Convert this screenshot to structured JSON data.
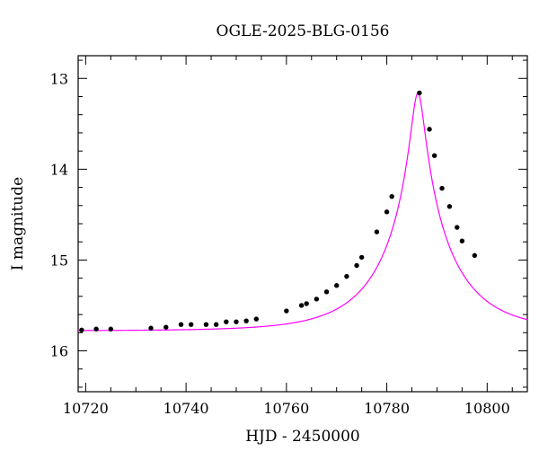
{
  "chart_data": {
    "type": "scatter",
    "title": "OGLE-2025-BLG-0156",
    "xlabel": "HJD - 2450000",
    "ylabel": "I magnitude",
    "xlim": [
      10718.5,
      10808
    ],
    "ylim": [
      16.45,
      12.75
    ],
    "y_inverted": true,
    "grid": false,
    "xticks": [
      10720,
      10740,
      10760,
      10780,
      10800
    ],
    "xtick_labels": [
      "10720",
      "10740",
      "10760",
      "10780",
      "10800"
    ],
    "yticks": [
      13,
      14,
      15,
      16
    ],
    "ytick_labels": [
      "13",
      "14",
      "15",
      "16"
    ],
    "points": [
      [
        10719.2,
        15.77
      ],
      [
        10722.1,
        15.76
      ],
      [
        10725.0,
        15.76
      ],
      [
        10733.0,
        15.75
      ],
      [
        10736.0,
        15.74
      ],
      [
        10739.0,
        15.71
      ],
      [
        10741.0,
        15.71
      ],
      [
        10744.0,
        15.71
      ],
      [
        10746.0,
        15.71
      ],
      [
        10748.0,
        15.68
      ],
      [
        10750.0,
        15.68
      ],
      [
        10752.0,
        15.67
      ],
      [
        10754.0,
        15.65
      ],
      [
        10760.0,
        15.56
      ],
      [
        10763.0,
        15.5
      ],
      [
        10764.0,
        15.48
      ],
      [
        10766.0,
        15.43
      ],
      [
        10768.0,
        15.35
      ],
      [
        10770.0,
        15.28
      ],
      [
        10772.0,
        15.18
      ],
      [
        10774.0,
        15.06
      ],
      [
        10775.0,
        14.97
      ],
      [
        10778.0,
        14.69
      ],
      [
        10780.0,
        14.47
      ],
      [
        10781.0,
        14.3
      ],
      [
        10786.5,
        13.16
      ],
      [
        10788.5,
        13.56
      ],
      [
        10789.5,
        13.85
      ],
      [
        10791.0,
        14.21
      ],
      [
        10792.5,
        14.41
      ],
      [
        10794.0,
        14.64
      ],
      [
        10795.0,
        14.79
      ],
      [
        10797.5,
        14.95
      ]
    ],
    "model": {
      "t0": 10786.2,
      "tE": 14,
      "u0": 0.09,
      "baseline": 15.78,
      "color": "#ff00ff"
    },
    "marker_color": "#000000"
  }
}
